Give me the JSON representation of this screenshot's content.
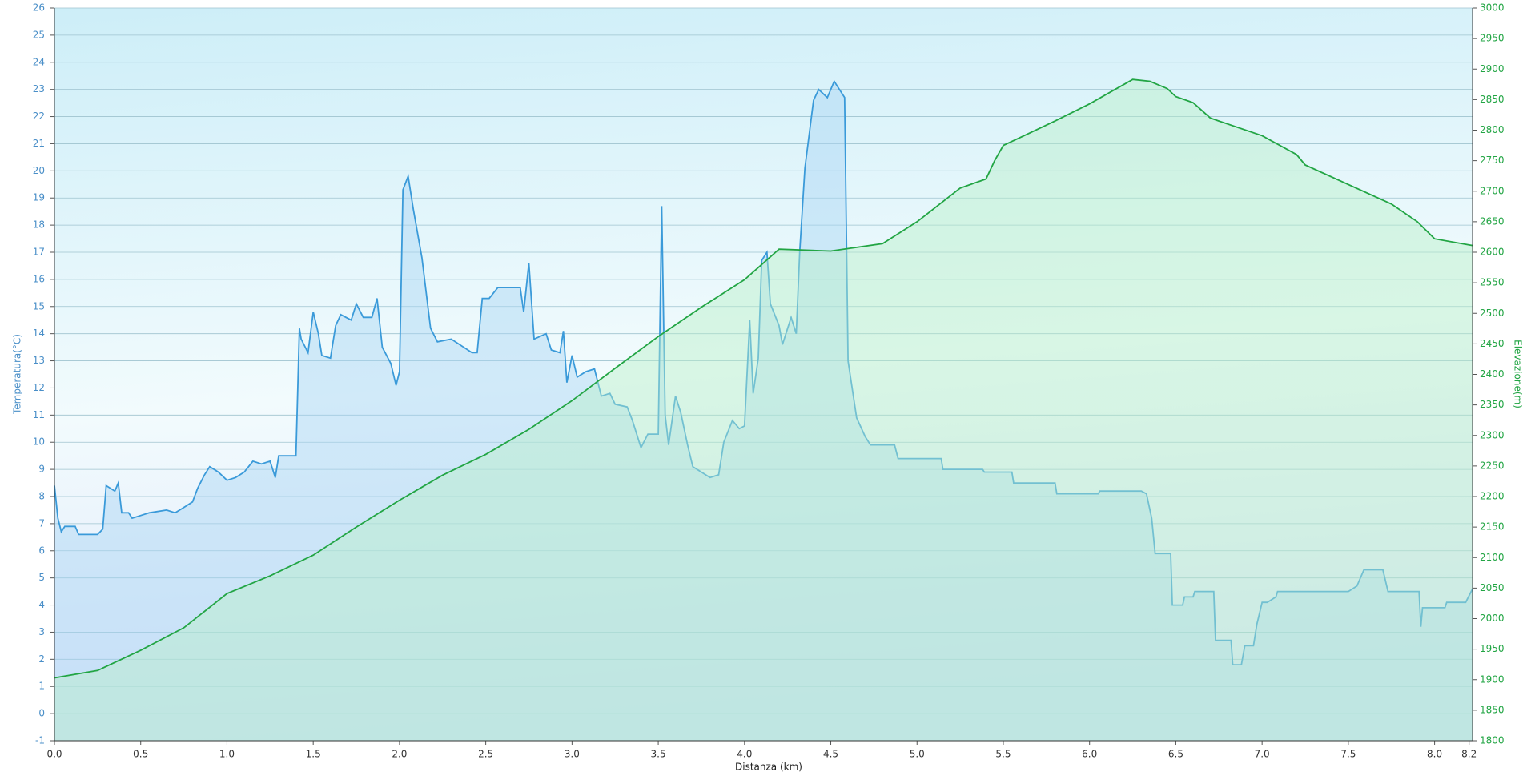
{
  "chart_data": {
    "type": "line",
    "x_label": "Distanza  (km)",
    "y_label": "Temperatura(°C)",
    "y2_label": "Elevazione(m)",
    "xlim": [
      0,
      8.22
    ],
    "xticks": [
      {
        "value": 0,
        "label": "0.0"
      },
      0.5,
      {
        "value": 1,
        "label": "1.0"
      },
      1.5,
      {
        "value": 2,
        "label": "2.0"
      },
      2.5,
      {
        "value": 3,
        "label": "3.0"
      },
      3.5,
      {
        "value": 4,
        "label": "4.0"
      },
      4.5,
      {
        "value": 5,
        "label": "5.0"
      },
      5.5,
      {
        "value": 6,
        "label": "6.0"
      },
      6.5,
      {
        "value": 7,
        "label": "7.0"
      },
      7.5,
      {
        "value": 8,
        "label": "8.0"
      },
      8.2
    ],
    "ylim": [
      -1,
      26
    ],
    "yticks": [
      -1,
      0,
      1,
      2,
      3,
      4,
      5,
      6,
      7,
      8,
      9,
      10,
      11,
      12,
      13,
      14,
      15,
      16,
      17,
      18,
      19,
      20,
      21,
      22,
      23,
      24,
      25,
      26
    ],
    "y2lim": [
      1800,
      3000
    ],
    "y2ticks": [
      1800,
      1850,
      1900,
      1950,
      2000,
      2050,
      2100,
      2150,
      2200,
      2250,
      2300,
      2350,
      2400,
      2450,
      2500,
      2550,
      2600,
      2650,
      2700,
      2750,
      2800,
      2850,
      2900,
      2950,
      3000
    ],
    "grid": true,
    "series": [
      {
        "color": "#3a9ad9",
        "fill": "#a9d4f5",
        "axis": "y",
        "x": [
          0,
          0.02,
          0.04,
          0.06,
          0.12,
          0.14,
          0.25,
          0.28,
          0.3,
          0.35,
          0.37,
          0.39,
          0.43,
          0.45,
          0.5,
          0.55,
          0.65,
          0.7,
          0.75,
          0.8,
          0.83,
          0.87,
          0.9,
          0.95,
          1.0,
          1.05,
          1.1,
          1.15,
          1.2,
          1.25,
          1.28,
          1.3,
          1.4,
          1.42,
          1.43,
          1.47,
          1.5,
          1.53,
          1.55,
          1.6,
          1.63,
          1.66,
          1.72,
          1.75,
          1.79,
          1.84,
          1.87,
          1.9,
          1.95,
          1.98,
          2.0,
          2.02,
          2.05,
          2.08,
          2.13,
          2.18,
          2.22,
          2.3,
          2.42,
          2.45,
          2.48,
          2.52,
          2.57,
          2.7,
          2.72,
          2.75,
          2.78,
          2.85,
          2.88,
          2.93,
          2.95,
          2.97,
          3.0,
          3.03,
          3.08,
          3.13,
          3.17,
          3.22,
          3.25,
          3.32,
          3.35,
          3.4,
          3.44,
          3.5,
          3.52,
          3.54,
          3.56,
          3.6,
          3.63,
          3.67,
          3.7,
          3.75,
          3.8,
          3.85,
          3.88,
          3.93,
          3.97,
          4.0,
          4.03,
          4.05,
          4.08,
          4.1,
          4.13,
          4.15,
          4.2,
          4.22,
          4.27,
          4.3,
          4.32,
          4.35,
          4.4,
          4.43,
          4.48,
          4.52,
          4.55,
          4.58,
          4.6,
          4.65,
          4.7,
          4.73,
          4.87,
          4.89,
          5.14,
          5.15,
          5.38,
          5.39,
          5.55,
          5.56,
          5.8,
          5.81,
          6.05,
          6.06,
          6.3,
          6.33,
          6.36,
          6.38,
          6.47,
          6.48,
          6.54,
          6.55,
          6.6,
          6.61,
          6.72,
          6.73,
          6.82,
          6.83,
          6.88,
          6.9,
          6.95,
          6.97,
          7.0,
          7.03,
          7.08,
          7.09,
          7.48,
          7.5,
          7.55,
          7.59,
          7.7,
          7.73,
          7.91,
          7.92,
          7.93,
          8.06,
          8.07,
          8.18,
          8.22
        ],
        "values": [
          8.4,
          7.2,
          6.7,
          6.9,
          6.9,
          6.6,
          6.6,
          6.8,
          8.4,
          8.2,
          8.5,
          7.4,
          7.4,
          7.2,
          7.3,
          7.4,
          7.5,
          7.4,
          7.6,
          7.8,
          8.3,
          8.8,
          9.1,
          8.9,
          8.6,
          8.7,
          8.9,
          9.3,
          9.2,
          9.3,
          8.7,
          9.5,
          9.5,
          14.2,
          13.8,
          13.3,
          14.8,
          14.0,
          13.2,
          13.1,
          14.3,
          14.7,
          14.5,
          15.1,
          14.6,
          14.6,
          15.3,
          13.5,
          12.9,
          12.1,
          12.6,
          19.3,
          19.8,
          18.6,
          16.8,
          14.2,
          13.7,
          13.8,
          13.3,
          13.3,
          15.3,
          15.3,
          15.7,
          15.7,
          14.8,
          16.6,
          13.8,
          14.0,
          13.4,
          13.3,
          14.1,
          12.2,
          13.2,
          12.4,
          12.6,
          12.7,
          11.7,
          11.8,
          11.4,
          11.3,
          10.8,
          9.8,
          10.3,
          10.3,
          18.7,
          11.0,
          9.9,
          11.7,
          11.1,
          9.9,
          9.1,
          8.9,
          8.7,
          8.8,
          10.0,
          10.8,
          10.5,
          10.6,
          14.5,
          11.8,
          13.1,
          16.7,
          17.0,
          15.1,
          14.3,
          13.6,
          14.6,
          14.0,
          17.0,
          20.1,
          22.6,
          23.0,
          22.7,
          23.3,
          23.0,
          22.7,
          13.0,
          10.9,
          10.2,
          9.9,
          9.9,
          9.4,
          9.4,
          9.0,
          9.0,
          8.9,
          8.9,
          8.5,
          8.5,
          8.1,
          8.1,
          8.2,
          8.2,
          8.1,
          7.2,
          5.9,
          5.9,
          4.0,
          4.0,
          4.3,
          4.3,
          4.5,
          4.5,
          2.7,
          2.7,
          1.8,
          1.8,
          2.5,
          2.5,
          3.3,
          4.1,
          4.1,
          4.3,
          4.5,
          4.5,
          4.5,
          4.7,
          5.3,
          5.3,
          4.5,
          4.5,
          3.2,
          3.9,
          3.9,
          4.1,
          4.1,
          4.6
        ]
      },
      {
        "color": "#22a544",
        "fill": "#b8f0c8",
        "axis": "y2",
        "x": [
          0,
          0.25,
          0.5,
          0.75,
          1.0,
          1.25,
          1.5,
          1.75,
          2.0,
          2.25,
          2.5,
          2.75,
          3.0,
          3.25,
          3.5,
          3.75,
          4.0,
          4.1,
          4.2,
          4.5,
          4.8,
          5.0,
          5.25,
          5.4,
          5.45,
          5.5,
          5.8,
          6.0,
          6.25,
          6.35,
          6.45,
          6.5,
          6.6,
          6.7,
          6.75,
          7.0,
          7.2,
          7.25,
          7.5,
          7.75,
          7.9,
          8.0,
          8.22
        ],
        "values": [
          1903,
          1915,
          1948,
          1985,
          2041,
          2070,
          2104,
          2150,
          2194,
          2235,
          2269,
          2310,
          2357,
          2410,
          2462,
          2510,
          2555,
          2580,
          2605,
          2602,
          2614,
          2650,
          2705,
          2720,
          2750,
          2775,
          2815,
          2843,
          2883,
          2880,
          2868,
          2855,
          2845,
          2820,
          2815,
          2791,
          2760,
          2743,
          2711,
          2679,
          2650,
          2622,
          2611
        ]
      }
    ]
  }
}
